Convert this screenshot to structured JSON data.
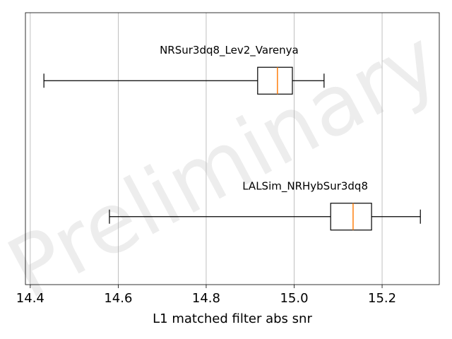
{
  "chart_data": {
    "type": "box",
    "xlabel": "L1 matched filter abs snr",
    "watermark": "Preliminary",
    "xlim": [
      14.389,
      15.33
    ],
    "xticks": [
      14.4,
      14.6,
      14.8,
      {
        "value": 15.0,
        "label": "15.0"
      },
      15.2
    ],
    "grid": true,
    "box_color": "#000000",
    "median_color": "#ff7f0e",
    "boxes": [
      {
        "name": "NRSur3dq8_Lev2_Varenya",
        "whislo": 14.431,
        "q1": 14.917,
        "med": 14.962,
        "q3": 14.996,
        "whishi": 15.068
      },
      {
        "name": "LALSim_NRHybSur3dq8",
        "whislo": 14.58,
        "q1": 15.083,
        "med": 15.134,
        "q3": 15.176,
        "whishi": 15.287
      }
    ]
  }
}
